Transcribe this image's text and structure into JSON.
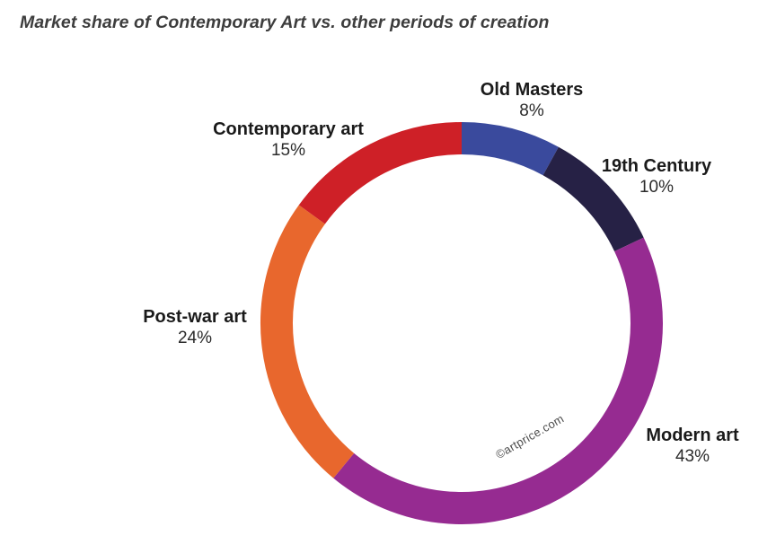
{
  "title": "Market share of Contemporary Art vs. other periods of creation",
  "watermark": "©artprice.com",
  "chart_data": {
    "type": "pie",
    "subtype": "donut",
    "title": "Market share of Contemporary Art vs. other periods of creation",
    "start_angle_deg": 0,
    "direction": "clockwise",
    "donut_hole_ratio": 0.84,
    "legend_position": "labels-around-donut",
    "annotations": [
      "©artprice.com"
    ],
    "segments": [
      {
        "label": "Old Masters",
        "value": 8,
        "value_label": "8%",
        "color": "#3a4a9d"
      },
      {
        "label": "19th Century",
        "value": 10,
        "value_label": "10%",
        "color": "#262145"
      },
      {
        "label": "Modern art",
        "value": 43,
        "value_label": "43%",
        "color": "#962b91"
      },
      {
        "label": "Post-war art",
        "value": 24,
        "value_label": "24%",
        "color": "#e8672d"
      },
      {
        "label": "Contemporary art",
        "value": 15,
        "value_label": "15%",
        "color": "#ce2027"
      }
    ]
  }
}
